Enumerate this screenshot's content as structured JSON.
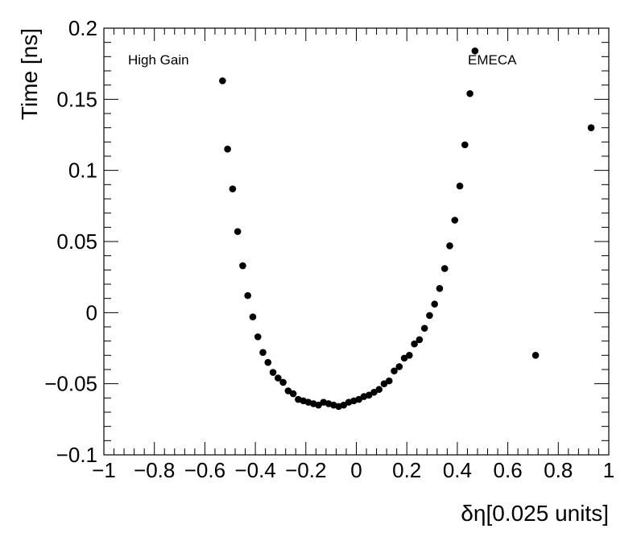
{
  "chart_data": {
    "type": "scatter",
    "xlabel": "δη[0.025 units]",
    "ylabel": "Time [ns]",
    "xlim": [
      -1,
      1
    ],
    "ylim": [
      -0.1,
      0.2
    ],
    "x_ticks": [
      "−1",
      "−0.8",
      "−0.6",
      "−0.4",
      "−0.2",
      "0",
      "0.2",
      "0.4",
      "0.6",
      "0.8",
      "1"
    ],
    "y_ticks": [
      "−0.1",
      "−0.05",
      "0",
      "0.05",
      "0.1",
      "0.15",
      "0.2"
    ],
    "annotations": {
      "left": "High Gain",
      "right": "EMECA"
    },
    "grid": false,
    "marker_color": "#000000",
    "points": [
      {
        "x": -0.53,
        "y": 0.163
      },
      {
        "x": -0.51,
        "y": 0.115
      },
      {
        "x": -0.49,
        "y": 0.087
      },
      {
        "x": -0.47,
        "y": 0.057
      },
      {
        "x": -0.45,
        "y": 0.033
      },
      {
        "x": -0.43,
        "y": 0.012
      },
      {
        "x": -0.41,
        "y": -0.003
      },
      {
        "x": -0.39,
        "y": -0.017
      },
      {
        "x": -0.37,
        "y": -0.028
      },
      {
        "x": -0.35,
        "y": -0.035
      },
      {
        "x": -0.33,
        "y": -0.042
      },
      {
        "x": -0.31,
        "y": -0.046
      },
      {
        "x": -0.29,
        "y": -0.049
      },
      {
        "x": -0.27,
        "y": -0.055
      },
      {
        "x": -0.25,
        "y": -0.057
      },
      {
        "x": -0.23,
        "y": -0.061
      },
      {
        "x": -0.21,
        "y": -0.062
      },
      {
        "x": -0.19,
        "y": -0.063
      },
      {
        "x": -0.17,
        "y": -0.064
      },
      {
        "x": -0.15,
        "y": -0.065
      },
      {
        "x": -0.13,
        "y": -0.063
      },
      {
        "x": -0.11,
        "y": -0.064
      },
      {
        "x": -0.09,
        "y": -0.065
      },
      {
        "x": -0.07,
        "y": -0.066
      },
      {
        "x": -0.05,
        "y": -0.065
      },
      {
        "x": -0.03,
        "y": -0.063
      },
      {
        "x": -0.01,
        "y": -0.062
      },
      {
        "x": 0.01,
        "y": -0.061
      },
      {
        "x": 0.03,
        "y": -0.059
      },
      {
        "x": 0.05,
        "y": -0.058
      },
      {
        "x": 0.07,
        "y": -0.056
      },
      {
        "x": 0.09,
        "y": -0.054
      },
      {
        "x": 0.11,
        "y": -0.05
      },
      {
        "x": 0.13,
        "y": -0.048
      },
      {
        "x": 0.15,
        "y": -0.041
      },
      {
        "x": 0.17,
        "y": -0.038
      },
      {
        "x": 0.19,
        "y": -0.032
      },
      {
        "x": 0.21,
        "y": -0.03
      },
      {
        "x": 0.23,
        "y": -0.022
      },
      {
        "x": 0.25,
        "y": -0.019
      },
      {
        "x": 0.27,
        "y": -0.011
      },
      {
        "x": 0.29,
        "y": -0.002
      },
      {
        "x": 0.31,
        "y": 0.006
      },
      {
        "x": 0.33,
        "y": 0.017
      },
      {
        "x": 0.35,
        "y": 0.031
      },
      {
        "x": 0.37,
        "y": 0.047
      },
      {
        "x": 0.39,
        "y": 0.065
      },
      {
        "x": 0.41,
        "y": 0.089
      },
      {
        "x": 0.43,
        "y": 0.118
      },
      {
        "x": 0.45,
        "y": 0.154
      },
      {
        "x": 0.47,
        "y": 0.184
      },
      {
        "x": 0.71,
        "y": -0.03
      },
      {
        "x": 0.93,
        "y": 0.13
      }
    ]
  }
}
